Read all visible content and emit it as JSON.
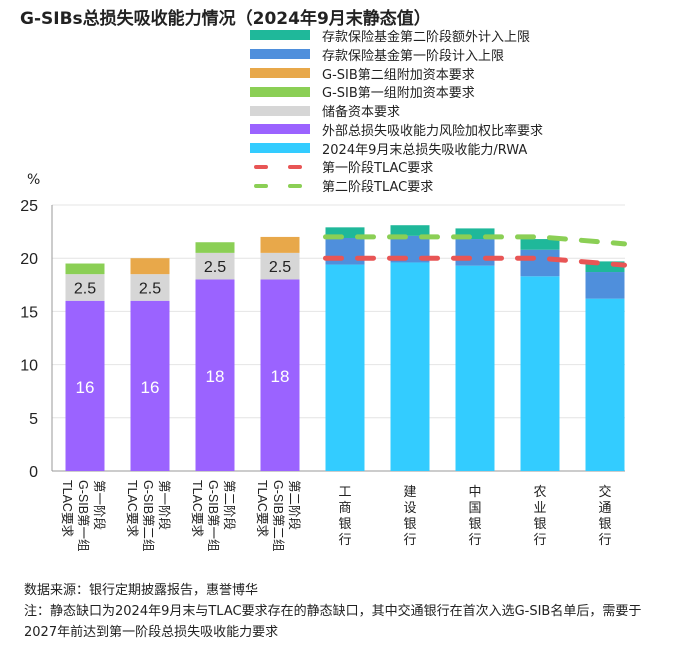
{
  "title": "G-SIBs总损失吸收能力情况（2024年9月末静态值）",
  "unit": "%",
  "legend": [
    {
      "label": "存款保险基金第二阶段额外计入上限",
      "color": "#1fb89a",
      "kind": "box"
    },
    {
      "label": "存款保险基金第一阶段计入上限",
      "color": "#4f8fdc",
      "kind": "box"
    },
    {
      "label": "G-SIB第二组附加资本要求",
      "color": "#e8a84a",
      "kind": "box"
    },
    {
      "label": "G-SIB第一组附加资本要求",
      "color": "#8bcf55",
      "kind": "box"
    },
    {
      "label": "储备资本要求",
      "color": "#d6d6d6",
      "kind": "box"
    },
    {
      "label": "外部总损失吸收能力风险加权比率要求",
      "color": "#9b63ff",
      "kind": "box"
    },
    {
      "label": "2024年9月末总损失吸收能力/RWA",
      "color": "#33ccff",
      "kind": "box"
    },
    {
      "label": "第一阶段TLAC要求",
      "color": "#e85555",
      "kind": "dash"
    },
    {
      "label": "第二阶段TLAC要求",
      "color": "#8bcf55",
      "kind": "dash"
    }
  ],
  "chart_data": {
    "type": "bar",
    "stacked": true,
    "ylim": [
      0,
      25
    ],
    "yticks": [
      0,
      5,
      10,
      15,
      20,
      25
    ],
    "ylabel": "%",
    "requirement_bars": [
      {
        "category": "第一阶段 G-SIB第一组 TLAC要求",
        "tlac": 16,
        "buffer": 2.5,
        "gsib1": 1,
        "gsib2": 0
      },
      {
        "category": "第一阶段 G-SIB第二组 TLAC要求",
        "tlac": 16,
        "buffer": 2.5,
        "gsib1": 0,
        "gsib2": 1.5
      },
      {
        "category": "第二阶段 G-SIB第一组 TLAC要求",
        "tlac": 18,
        "buffer": 2.5,
        "gsib1": 1,
        "gsib2": 0
      },
      {
        "category": "第二阶段 G-SIB第二组 TLAC要求",
        "tlac": 18,
        "buffer": 2.5,
        "gsib1": 0,
        "gsib2": 1.5
      }
    ],
    "bank_bars": [
      {
        "category": "工商银行",
        "tlac_rwa": 19.4,
        "dif_phase1": 2.5,
        "dif_phase2": 1.0
      },
      {
        "category": "建设银行",
        "tlac_rwa": 19.6,
        "dif_phase1": 2.5,
        "dif_phase2": 1.0
      },
      {
        "category": "中国银行",
        "tlac_rwa": 19.3,
        "dif_phase1": 2.5,
        "dif_phase2": 1.0
      },
      {
        "category": "农业银行",
        "tlac_rwa": 18.3,
        "dif_phase1": 2.5,
        "dif_phase2": 1.0
      },
      {
        "category": "交通银行",
        "tlac_rwa": 16.2,
        "dif_phase1": 2.5,
        "dif_phase2": 1.0
      }
    ],
    "phase1_tlac_line": [
      20,
      20,
      20,
      20,
      19.5
    ],
    "phase2_tlac_line": [
      22,
      22,
      22,
      22,
      21.5
    ],
    "data_labels": {
      "buffer": "2.5",
      "tlac_values": [
        "16",
        "16",
        "18",
        "18"
      ]
    }
  },
  "footer": {
    "source": "数据来源：银行定期披露报告，惠誉博华",
    "note": "注：静态缺口为2024年9月末与TLAC要求存在的静态缺口，其中交通银行在首次入选G-SIB名单后，需要于2027年前达到第一阶段总损失吸收能力要求"
  }
}
